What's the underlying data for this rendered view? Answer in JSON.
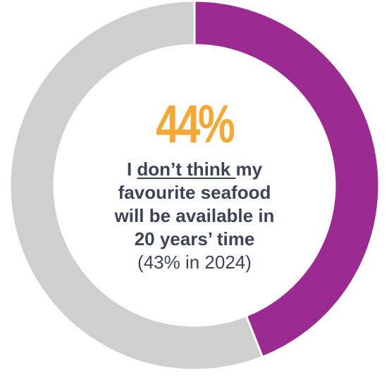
{
  "chart_data": {
    "type": "pie",
    "variant": "donut",
    "categories": [
      "Don't think available",
      "Other"
    ],
    "values": [
      44,
      56
    ],
    "colors": [
      "#9b2a93",
      "#cfcfcf"
    ],
    "title": "",
    "center_label": {
      "value": "44%",
      "statement_prefix": "I ",
      "statement_underlined": "don’t think ",
      "statement_line1_suffix": "my",
      "statement_line2": "favourite seafood",
      "statement_line3": "will be available in",
      "statement_line4": "20 years’ time",
      "comparison": "(43% in 2024)"
    }
  },
  "colors": {
    "highlight_segment": "#9b2a93",
    "remaining_segment": "#cfcfcf",
    "value_text": "#f6a833",
    "body_text": "#3b4458"
  }
}
